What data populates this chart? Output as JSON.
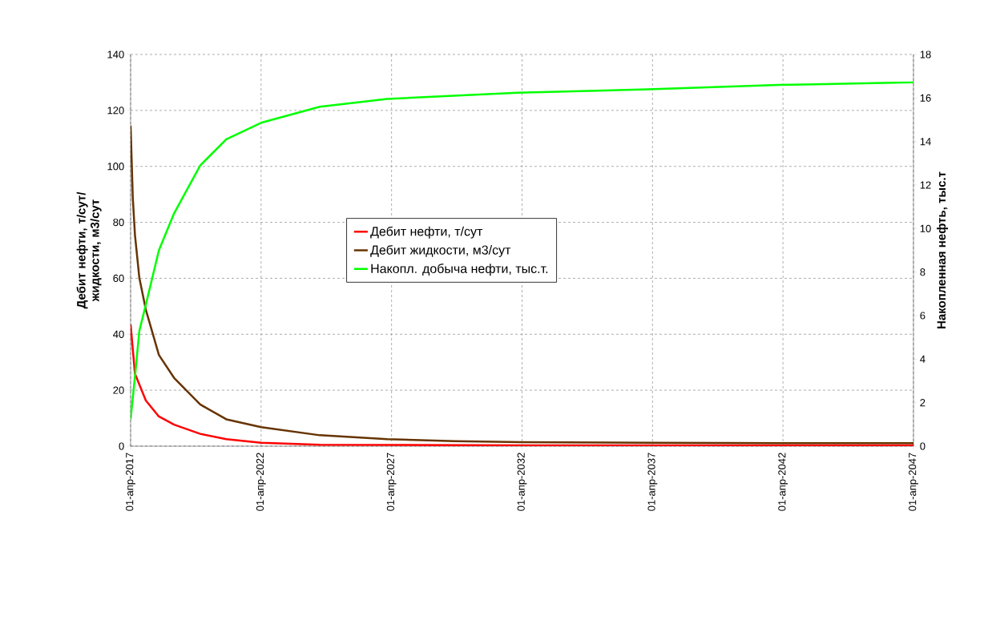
{
  "chart_data": {
    "type": "line",
    "ylabel": "Дебит нефти, т/сут/ жидкости, м3/сут",
    "y2label": "Накопленная нефть, тыс.т",
    "xlim": [
      "2017-04-01",
      "2047-04-01"
    ],
    "xticks": [
      {
        "value": "2017-04-01",
        "label": "01-апр-2017"
      },
      {
        "value": "2022-04-01",
        "label": "01-апр-2022"
      },
      {
        "value": "2027-04-01",
        "label": "01-апр-2027"
      },
      {
        "value": "2032-04-01",
        "label": "01-апр-2032"
      },
      {
        "value": "2037-04-01",
        "label": "01-апр-2037"
      },
      {
        "value": "2042-04-01",
        "label": "01-апр-2042"
      },
      {
        "value": "2047-04-01",
        "label": "01-апр-2047"
      }
    ],
    "ylim": [
      0,
      140
    ],
    "yticks": [
      0,
      20,
      40,
      60,
      80,
      100,
      120,
      140
    ],
    "y2lim": [
      0,
      18
    ],
    "y2ticks": [
      0,
      2,
      4,
      6,
      8,
      10,
      12,
      14,
      16,
      18
    ],
    "grid": true,
    "legend": "center",
    "line_style": "solid",
    "marker": "none",
    "series": [
      {
        "name": "Дебит нефти, т/сут",
        "color": "#ff0000",
        "x": [
          "2017-04",
          "2017-06",
          "2017-11",
          "2018-05",
          "2018-12",
          "2019-12",
          "2020-12",
          "2022-04",
          "2024-07",
          "2027-08",
          "2032-04",
          "2037-04",
          "2042-04",
          "2047-04"
        ],
        "values": [
          43.5,
          25.9,
          16.3,
          10.6,
          7.7,
          4.4,
          2.5,
          1.2,
          0.5,
          0.4,
          0.3,
          0.3,
          0.3,
          0.3
        ]
      },
      {
        "name": "Дебит жидкости, м3/сут",
        "color": "#663300",
        "x": [
          "2017-04",
          "2017-05",
          "2017-06",
          "2017-08",
          "2017-11",
          "2018-05",
          "2018-12",
          "2019-12",
          "2020-12",
          "2022-04",
          "2024-07",
          "2027-02",
          "2029-09",
          "2032-04",
          "2037-04",
          "2042-04",
          "2047-04"
        ],
        "values": [
          114.6,
          88.8,
          75.5,
          60.2,
          48.8,
          32.6,
          24.4,
          14.9,
          9.6,
          6.8,
          3.9,
          2.5,
          1.8,
          1.4,
          1.2,
          1.1,
          1.1
        ]
      },
      {
        "name": "Накопл. добыча нефти, тыс.т.",
        "color": "#00ff00",
        "axis": "y2",
        "x": [
          "2017-04",
          "2017-06",
          "2017-08",
          "2017-11",
          "2018-05",
          "2018-12",
          "2019-12",
          "2020-12",
          "2022-04",
          "2024-07",
          "2027-02",
          "2032-02",
          "2037-02",
          "2042-02",
          "2047-04"
        ],
        "values": [
          1.24,
          3.2,
          5.29,
          6.5,
          9.0,
          10.7,
          12.9,
          14.1,
          14.86,
          15.6,
          15.96,
          16.24,
          16.4,
          16.6,
          16.72
        ]
      }
    ]
  }
}
